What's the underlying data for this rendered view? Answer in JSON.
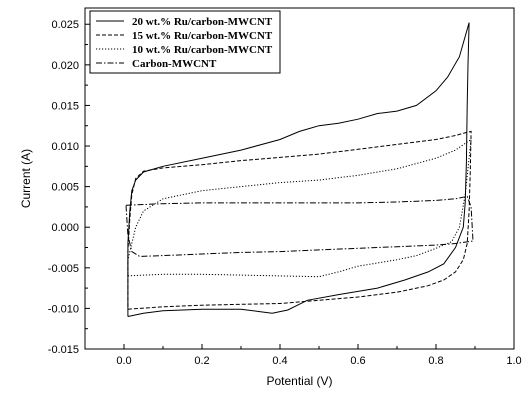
{
  "chart_data": {
    "type": "line",
    "title": "",
    "xlabel": "Potential (V)",
    "ylabel": "Current (A)",
    "xlim": [
      -0.1,
      1.0
    ],
    "ylim": [
      -0.015,
      0.027
    ],
    "grid": false,
    "legend_position": "top-left",
    "x_ticks": [
      {
        "value": 0.0,
        "label": "0.0"
      },
      {
        "value": 0.2,
        "label": "0.2"
      },
      {
        "value": 0.4,
        "label": "0.4"
      },
      {
        "value": 0.6,
        "label": "0.6"
      },
      {
        "value": 0.8,
        "label": "0.8"
      },
      {
        "value": 1.0,
        "label": "1.0"
      }
    ],
    "y_ticks": [
      {
        "value": 0.025,
        "label": "0.025"
      },
      {
        "value": 0.02,
        "label": "0.020"
      },
      {
        "value": 0.015,
        "label": "0.015"
      },
      {
        "value": 0.01,
        "label": "0.010"
      },
      {
        "value": 0.005,
        "label": "0.005"
      },
      {
        "value": 0.0,
        "label": "0.000"
      },
      {
        "value": -0.005,
        "label": "-0.005"
      },
      {
        "value": -0.01,
        "label": "-0.010"
      },
      {
        "value": -0.015,
        "label": "-0.015"
      }
    ],
    "series": [
      {
        "name": "20 wt.% Ru/carbon-MWCNT",
        "dash": "solid",
        "points": [
          [
            0.01,
            -0.011
          ],
          [
            0.05,
            -0.0106
          ],
          [
            0.1,
            -0.0103
          ],
          [
            0.2,
            -0.0101
          ],
          [
            0.3,
            -0.0101
          ],
          [
            0.35,
            -0.0104
          ],
          [
            0.38,
            -0.0106
          ],
          [
            0.42,
            -0.0102
          ],
          [
            0.47,
            -0.009
          ],
          [
            0.55,
            -0.0083
          ],
          [
            0.65,
            -0.0075
          ],
          [
            0.72,
            -0.0065
          ],
          [
            0.78,
            -0.0055
          ],
          [
            0.82,
            -0.0045
          ],
          [
            0.85,
            -0.0025
          ],
          [
            0.87,
            0.0
          ],
          [
            0.875,
            0.003
          ],
          [
            0.878,
            0.008
          ],
          [
            0.88,
            0.015
          ],
          [
            0.882,
            0.02
          ],
          [
            0.885,
            0.0252
          ],
          [
            0.875,
            0.0235
          ],
          [
            0.86,
            0.021
          ],
          [
            0.83,
            0.0185
          ],
          [
            0.8,
            0.0168
          ],
          [
            0.75,
            0.015
          ],
          [
            0.7,
            0.0143
          ],
          [
            0.65,
            0.014
          ],
          [
            0.6,
            0.0133
          ],
          [
            0.55,
            0.0128
          ],
          [
            0.5,
            0.0125
          ],
          [
            0.45,
            0.0118
          ],
          [
            0.4,
            0.0108
          ],
          [
            0.3,
            0.0095
          ],
          [
            0.2,
            0.0085
          ],
          [
            0.1,
            0.0075
          ],
          [
            0.05,
            0.0068
          ],
          [
            0.03,
            0.0058
          ],
          [
            0.02,
            0.0045
          ],
          [
            0.015,
            0.002
          ],
          [
            0.01,
            -0.002
          ],
          [
            0.01,
            -0.011
          ]
        ]
      },
      {
        "name": "15 wt.% Ru/carbon-MWCNT",
        "dash": "dashed",
        "points": [
          [
            0.01,
            -0.0101
          ],
          [
            0.1,
            -0.0098
          ],
          [
            0.2,
            -0.0096
          ],
          [
            0.3,
            -0.0095
          ],
          [
            0.4,
            -0.0094
          ],
          [
            0.5,
            -0.009
          ],
          [
            0.6,
            -0.0086
          ],
          [
            0.7,
            -0.008
          ],
          [
            0.78,
            -0.0072
          ],
          [
            0.82,
            -0.0065
          ],
          [
            0.85,
            -0.0055
          ],
          [
            0.87,
            -0.004
          ],
          [
            0.88,
            -0.002
          ],
          [
            0.885,
            0.002
          ],
          [
            0.888,
            0.007
          ],
          [
            0.89,
            0.0118
          ],
          [
            0.88,
            0.0117
          ],
          [
            0.85,
            0.0113
          ],
          [
            0.8,
            0.0108
          ],
          [
            0.7,
            0.0102
          ],
          [
            0.6,
            0.0096
          ],
          [
            0.5,
            0.009
          ],
          [
            0.4,
            0.0086
          ],
          [
            0.3,
            0.0082
          ],
          [
            0.2,
            0.0077
          ],
          [
            0.1,
            0.0073
          ],
          [
            0.05,
            0.0069
          ],
          [
            0.03,
            0.006
          ],
          [
            0.02,
            0.004
          ],
          [
            0.015,
            0.001
          ],
          [
            0.01,
            -0.003
          ],
          [
            0.01,
            -0.0101
          ]
        ]
      },
      {
        "name": "10 wt.% Ru/carbon-MWCNT",
        "dash": "dotted",
        "points": [
          [
            0.01,
            -0.006
          ],
          [
            0.05,
            -0.0059
          ],
          [
            0.1,
            -0.0058
          ],
          [
            0.2,
            -0.0058
          ],
          [
            0.3,
            -0.0059
          ],
          [
            0.4,
            -0.006
          ],
          [
            0.5,
            -0.0061
          ],
          [
            0.55,
            -0.0055
          ],
          [
            0.6,
            -0.0048
          ],
          [
            0.7,
            -0.004
          ],
          [
            0.75,
            -0.0035
          ],
          [
            0.8,
            -0.0026
          ],
          [
            0.84,
            -0.0018
          ],
          [
            0.86,
            0.0
          ],
          [
            0.875,
            0.004
          ],
          [
            0.885,
            0.0085
          ],
          [
            0.89,
            0.0108
          ],
          [
            0.88,
            0.0105
          ],
          [
            0.85,
            0.0095
          ],
          [
            0.8,
            0.0085
          ],
          [
            0.7,
            0.0072
          ],
          [
            0.6,
            0.0064
          ],
          [
            0.5,
            0.0058
          ],
          [
            0.4,
            0.0055
          ],
          [
            0.3,
            0.005
          ],
          [
            0.2,
            0.0045
          ],
          [
            0.1,
            0.0035
          ],
          [
            0.05,
            0.002
          ],
          [
            0.03,
            0.0
          ],
          [
            0.02,
            -0.002
          ],
          [
            0.01,
            -0.004
          ],
          [
            0.01,
            -0.006
          ]
        ]
      },
      {
        "name": "Carbon-MWCNT",
        "dash": "dashdot",
        "points": [
          [
            0.005,
            0.0027
          ],
          [
            0.1,
            0.0029
          ],
          [
            0.2,
            0.003
          ],
          [
            0.3,
            0.003
          ],
          [
            0.4,
            0.003
          ],
          [
            0.5,
            0.003
          ],
          [
            0.6,
            0.003
          ],
          [
            0.7,
            0.0031
          ],
          [
            0.8,
            0.0033
          ],
          [
            0.85,
            0.0035
          ],
          [
            0.88,
            0.0038
          ],
          [
            0.89,
            0.0025
          ],
          [
            0.895,
            -0.0017
          ],
          [
            0.85,
            -0.002
          ],
          [
            0.8,
            -0.0022
          ],
          [
            0.7,
            -0.0024
          ],
          [
            0.6,
            -0.0026
          ],
          [
            0.5,
            -0.0028
          ],
          [
            0.4,
            -0.003
          ],
          [
            0.3,
            -0.0031
          ],
          [
            0.2,
            -0.0033
          ],
          [
            0.1,
            -0.0035
          ],
          [
            0.04,
            -0.0036
          ],
          [
            0.02,
            -0.003
          ],
          [
            0.01,
            -0.001
          ],
          [
            0.005,
            0.0027
          ]
        ]
      }
    ]
  }
}
